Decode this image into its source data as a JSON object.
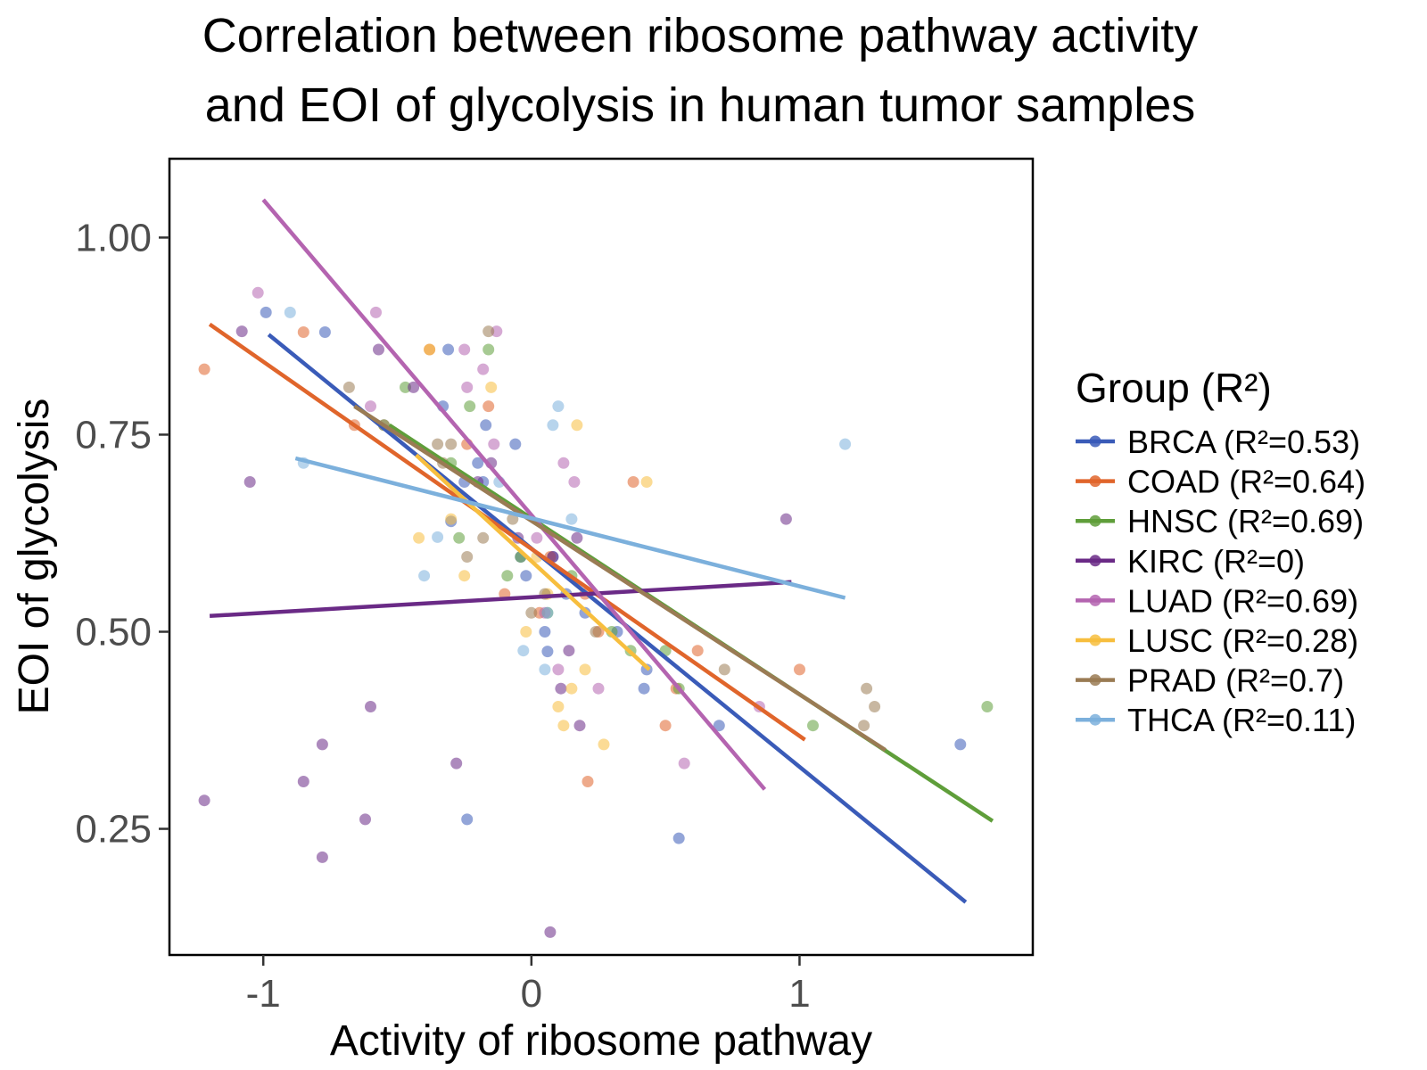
{
  "chart_data": {
    "type": "scatter",
    "title": [
      "Correlation between ribosome pathway activity",
      "and EOI of glycolysis in human tumor samples"
    ],
    "xlabel": "Activity of ribosome pathway",
    "ylabel": "EOI of glycolysis",
    "xlim": [
      -1.35,
      1.87
    ],
    "ylim": [
      0.09,
      1.1
    ],
    "xticks": [
      -1,
      0,
      1
    ],
    "xtick_labels": [
      "-1",
      "0",
      "1"
    ],
    "yticks": [
      0.25,
      0.5,
      0.75,
      1.0
    ],
    "ytick_labels": [
      "0.25",
      "0.50",
      "0.75",
      "1.00"
    ],
    "grid": false,
    "legend": {
      "title": "Group (R²)",
      "position": "right"
    },
    "series": [
      {
        "name": "BRCA (R²=0.53)",
        "color": "#3A5BB8",
        "fit": {
          "x": [
            -0.98,
            1.62
          ],
          "y": [
            0.877,
            0.157
          ]
        },
        "points": [
          [
            -0.99,
            0.905
          ],
          [
            -0.77,
            0.88
          ],
          [
            -0.33,
            0.786
          ],
          [
            -0.31,
            0.858
          ],
          [
            -0.3,
            0.64
          ],
          [
            -0.25,
            0.69
          ],
          [
            -0.2,
            0.714
          ],
          [
            -0.18,
            0.69
          ],
          [
            -0.17,
            0.762
          ],
          [
            -0.06,
            0.738
          ],
          [
            -0.04,
            0.595
          ],
          [
            -0.02,
            0.571
          ],
          [
            0.05,
            0.5
          ],
          [
            0.06,
            0.475
          ],
          [
            0.08,
            0.595
          ],
          [
            0.13,
            0.548
          ],
          [
            0.2,
            0.524
          ],
          [
            0.32,
            0.5
          ],
          [
            0.42,
            0.428
          ],
          [
            0.43,
            0.452
          ],
          [
            0.55,
            0.238
          ],
          [
            0.7,
            0.381
          ],
          [
            1.6,
            0.357
          ],
          [
            -0.24,
            0.262
          ]
        ]
      },
      {
        "name": "COAD (R²=0.64)",
        "color": "#E0652B",
        "fit": {
          "x": [
            -1.2,
            1.02
          ],
          "y": [
            0.89,
            0.363
          ]
        },
        "points": [
          [
            -1.22,
            0.833
          ],
          [
            -0.85,
            0.88
          ],
          [
            -0.66,
            0.762
          ],
          [
            -0.38,
            0.858
          ],
          [
            -0.24,
            0.738
          ],
          [
            -0.16,
            0.786
          ],
          [
            0.03,
            0.524
          ],
          [
            0.07,
            0.595
          ],
          [
            0.2,
            0.548
          ],
          [
            0.25,
            0.5
          ],
          [
            0.38,
            0.69
          ],
          [
            0.5,
            0.381
          ],
          [
            0.54,
            0.428
          ],
          [
            0.62,
            0.476
          ],
          [
            1.0,
            0.452
          ],
          [
            0.21,
            0.31
          ],
          [
            -0.1,
            0.548
          ]
        ]
      },
      {
        "name": "HNSC (R²=0.69)",
        "color": "#5F9E3A",
        "fit": {
          "x": [
            -0.53,
            1.72
          ],
          "y": [
            0.762,
            0.26
          ]
        },
        "points": [
          [
            -0.55,
            0.762
          ],
          [
            -0.47,
            0.81
          ],
          [
            -0.3,
            0.714
          ],
          [
            -0.27,
            0.619
          ],
          [
            -0.23,
            0.786
          ],
          [
            -0.16,
            0.858
          ],
          [
            -0.09,
            0.571
          ],
          [
            -0.04,
            0.595
          ],
          [
            0.06,
            0.524
          ],
          [
            0.15,
            0.571
          ],
          [
            0.3,
            0.5
          ],
          [
            0.37,
            0.476
          ],
          [
            0.5,
            0.476
          ],
          [
            0.55,
            0.428
          ],
          [
            1.05,
            0.381
          ],
          [
            1.7,
            0.405
          ]
        ]
      },
      {
        "name": "KIRC (R²=0)",
        "color": "#6A2A86",
        "fit": {
          "x": [
            -1.2,
            0.97
          ],
          "y": [
            0.52,
            0.563
          ]
        },
        "points": [
          [
            -1.22,
            0.286
          ],
          [
            -1.05,
            0.69
          ],
          [
            -0.85,
            0.31
          ],
          [
            -0.78,
            0.357
          ],
          [
            -0.78,
            0.214
          ],
          [
            -0.62,
            0.262
          ],
          [
            -0.6,
            0.405
          ],
          [
            -0.57,
            0.858
          ],
          [
            -0.44,
            0.81
          ],
          [
            -0.28,
            0.333
          ],
          [
            -0.2,
            0.69
          ],
          [
            -0.15,
            0.714
          ],
          [
            -0.05,
            0.619
          ],
          [
            0.08,
            0.595
          ],
          [
            0.11,
            0.428
          ],
          [
            0.14,
            0.476
          ],
          [
            0.17,
            0.619
          ],
          [
            0.18,
            0.381
          ],
          [
            0.07,
            0.119
          ],
          [
            0.95,
            0.643
          ],
          [
            -1.08,
            0.881
          ]
        ]
      },
      {
        "name": "LUAD (R²=0.69)",
        "color": "#B464B0",
        "fit": {
          "x": [
            -1.0,
            0.87
          ],
          "y": [
            1.048,
            0.3
          ]
        },
        "points": [
          [
            -1.02,
            0.93
          ],
          [
            -0.58,
            0.905
          ],
          [
            -0.25,
            0.858
          ],
          [
            -0.24,
            0.81
          ],
          [
            -0.18,
            0.833
          ],
          [
            -0.14,
            0.738
          ],
          [
            -0.13,
            0.881
          ],
          [
            0.02,
            0.619
          ],
          [
            0.05,
            0.524
          ],
          [
            0.1,
            0.452
          ],
          [
            0.12,
            0.714
          ],
          [
            0.16,
            0.69
          ],
          [
            0.25,
            0.428
          ],
          [
            0.57,
            0.333
          ],
          [
            0.85,
            0.405
          ],
          [
            -0.6,
            0.786
          ]
        ]
      },
      {
        "name": "LUSC (R²=0.28)",
        "color": "#F7BE3E",
        "fit": {
          "x": [
            -0.43,
            0.44
          ],
          "y": [
            0.724,
            0.452
          ]
        },
        "points": [
          [
            -0.42,
            0.619
          ],
          [
            -0.38,
            0.858
          ],
          [
            -0.3,
            0.643
          ],
          [
            -0.25,
            0.571
          ],
          [
            -0.15,
            0.81
          ],
          [
            -0.02,
            0.5
          ],
          [
            0.02,
            0.595
          ],
          [
            0.1,
            0.405
          ],
          [
            0.12,
            0.381
          ],
          [
            0.15,
            0.428
          ],
          [
            0.17,
            0.762
          ],
          [
            0.2,
            0.452
          ],
          [
            0.27,
            0.357
          ],
          [
            0.43,
            0.69
          ],
          [
            0.06,
            0.548
          ]
        ]
      },
      {
        "name": "PRAD (R²=0.7)",
        "color": "#9A7B54",
        "fit": {
          "x": [
            -0.66,
            1.32
          ],
          "y": [
            0.786,
            0.35
          ]
        },
        "points": [
          [
            -0.68,
            0.81
          ],
          [
            -0.55,
            0.762
          ],
          [
            -0.35,
            0.738
          ],
          [
            -0.33,
            0.714
          ],
          [
            -0.24,
            0.595
          ],
          [
            -0.16,
            0.881
          ],
          [
            -0.18,
            0.619
          ],
          [
            -0.07,
            0.643
          ],
          [
            0.0,
            0.524
          ],
          [
            0.05,
            0.548
          ],
          [
            0.24,
            0.5
          ],
          [
            0.72,
            0.452
          ],
          [
            1.25,
            0.428
          ],
          [
            1.28,
            0.405
          ],
          [
            1.24,
            0.381
          ],
          [
            -0.3,
            0.738
          ]
        ]
      },
      {
        "name": "THCA (R²=0.11)",
        "color": "#7CB0DC",
        "fit": {
          "x": [
            -0.88,
            1.17
          ],
          "y": [
            0.72,
            0.543
          ]
        },
        "points": [
          [
            -0.9,
            0.905
          ],
          [
            -0.85,
            0.714
          ],
          [
            -0.4,
            0.571
          ],
          [
            -0.35,
            0.62
          ],
          [
            -0.03,
            0.476
          ],
          [
            0.05,
            0.452
          ],
          [
            0.1,
            0.786
          ],
          [
            0.15,
            0.643
          ],
          [
            0.08,
            0.762
          ],
          [
            1.17,
            0.738
          ],
          [
            0.06,
            0.524
          ],
          [
            -0.12,
            0.69
          ]
        ]
      }
    ]
  }
}
